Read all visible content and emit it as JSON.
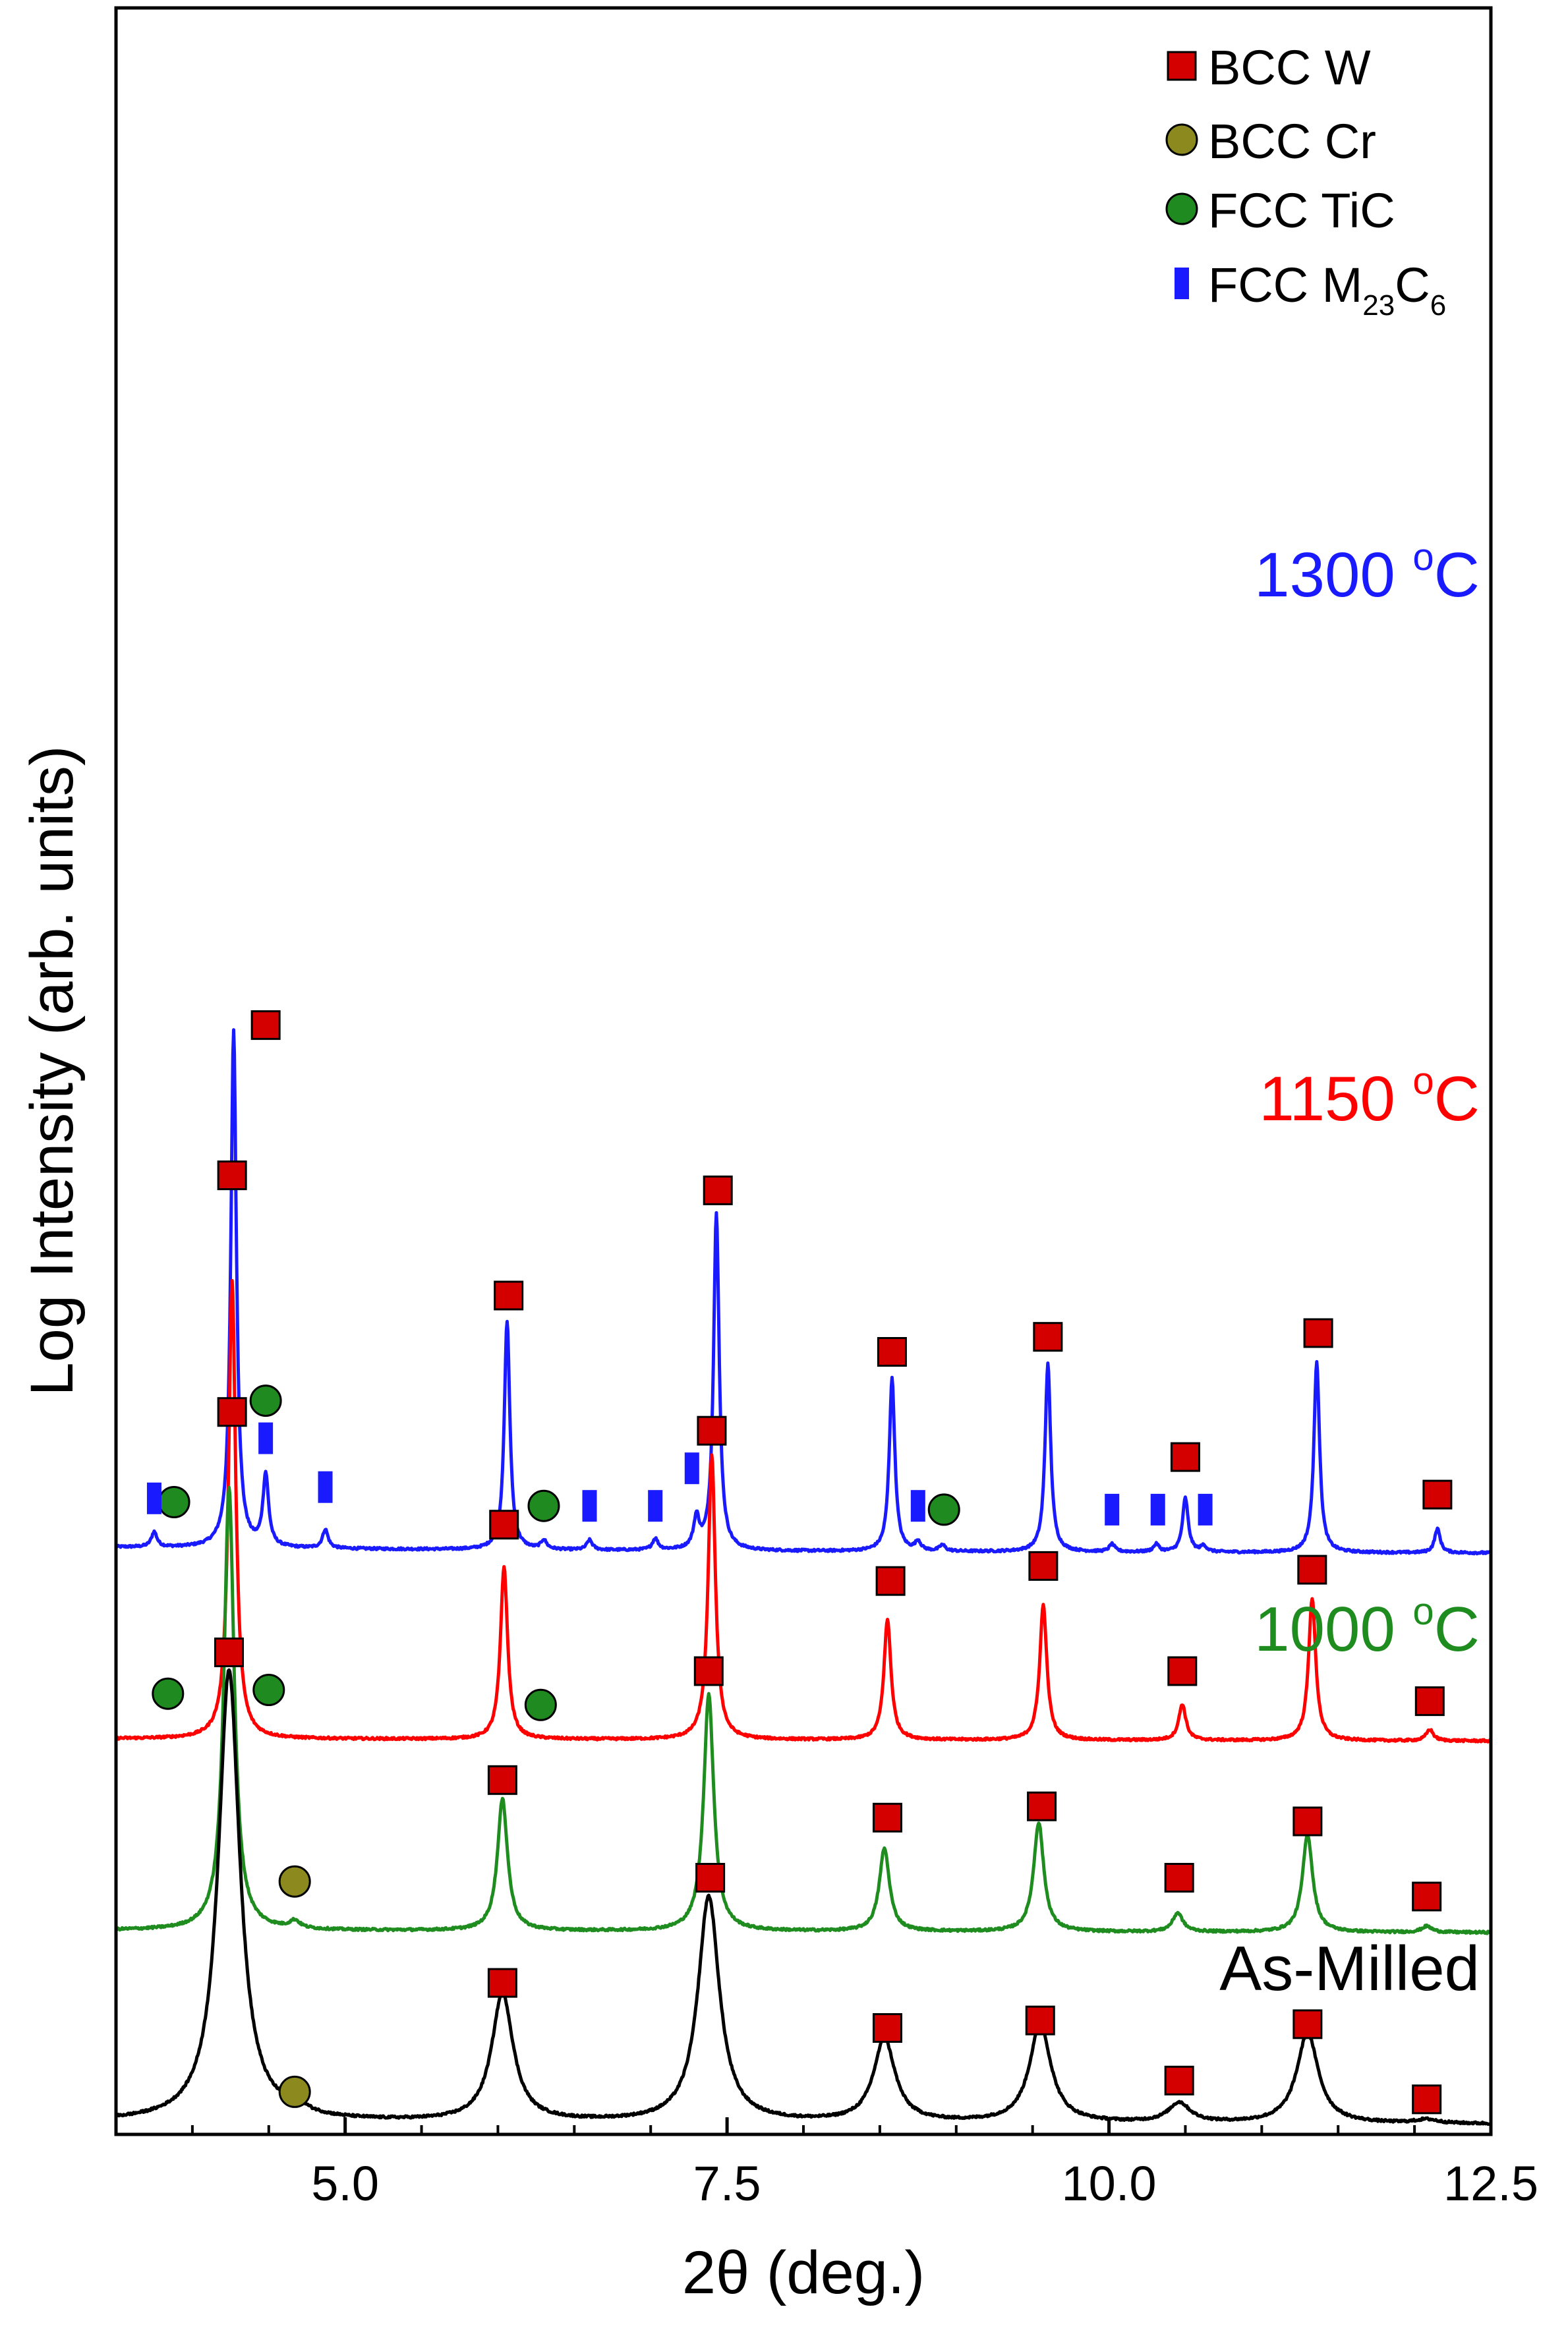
{
  "chart_data": {
    "type": "line",
    "xlabel": "2θ (deg.)",
    "ylabel": "Log Intensity (arb. units)",
    "xlim": [
      3.5,
      12.5
    ],
    "x_ticks": [
      5.0,
      7.5,
      10.0,
      12.5
    ],
    "x_tick_labels": [
      "5.0",
      "7.5",
      "10.0",
      "12.5"
    ],
    "y_ticks_shown": false,
    "grid": false,
    "legend_position": "top-right",
    "legend": [
      {
        "label": "BCC W",
        "marker": "square",
        "color": "#d40000"
      },
      {
        "label": "BCC Cr",
        "marker": "circle",
        "color": "#8c8a1e"
      },
      {
        "label": "FCC TiC",
        "marker": "circle",
        "color": "#1f8a1f"
      },
      {
        "label": "FCC M23C6",
        "label_base": "FCC M",
        "label_sub1": "23",
        "label_mid": "C",
        "label_sub2": "6",
        "marker": "bar",
        "color": "#1a1aff"
      }
    ],
    "series": [
      {
        "name": "1300 °C",
        "label_value": "1300",
        "label_unit": "C",
        "label_degree": "o",
        "color": "#1a1aff",
        "offset": 7.6,
        "width_deg": 0.022,
        "background": 0.05,
        "peaks": [
          {
            "x": 4.27,
            "h": 6.9
          },
          {
            "x": 4.48,
            "h": 0.95
          },
          {
            "x": 3.75,
            "h": 0.2
          },
          {
            "x": 4.87,
            "h": 0.25
          },
          {
            "x": 6.06,
            "h": 3.05
          },
          {
            "x": 6.3,
            "h": 0.12
          },
          {
            "x": 6.6,
            "h": 0.13
          },
          {
            "x": 7.03,
            "h": 0.15
          },
          {
            "x": 7.3,
            "h": 0.4
          },
          {
            "x": 7.43,
            "h": 4.5
          },
          {
            "x": 8.58,
            "h": 2.3
          },
          {
            "x": 8.75,
            "h": 0.12
          },
          {
            "x": 8.91,
            "h": 0.08
          },
          {
            "x": 9.6,
            "h": 2.5
          },
          {
            "x": 10.02,
            "h": 0.1
          },
          {
            "x": 10.31,
            "h": 0.1
          },
          {
            "x": 10.5,
            "h": 0.72
          },
          {
            "x": 10.62,
            "h": 0.08
          },
          {
            "x": 11.36,
            "h": 2.55
          },
          {
            "x": 12.15,
            "h": 0.32
          }
        ],
        "markers": [
          {
            "x": 4.48,
            "type": "W",
            "y": 7.0
          },
          {
            "x": 6.07,
            "type": "W",
            "y": 3.4
          },
          {
            "x": 7.44,
            "type": "W",
            "y": 4.8
          },
          {
            "x": 8.58,
            "type": "W",
            "y": 2.65
          },
          {
            "x": 9.6,
            "type": "W",
            "y": 2.85
          },
          {
            "x": 10.5,
            "type": "W",
            "y": 1.25
          },
          {
            "x": 11.37,
            "type": "W",
            "y": 2.9
          },
          {
            "x": 12.15,
            "type": "W",
            "y": 0.75
          },
          {
            "x": 3.88,
            "type": "TiC",
            "y": 0.65
          },
          {
            "x": 4.48,
            "type": "TiC",
            "y": 2.0
          },
          {
            "x": 6.3,
            "type": "TiC",
            "y": 0.6
          },
          {
            "x": 8.92,
            "type": "TiC",
            "y": 0.55
          },
          {
            "x": 3.75,
            "type": "M",
            "y": 0.7
          },
          {
            "x": 4.48,
            "type": "M",
            "y": 1.5
          },
          {
            "x": 4.87,
            "type": "M",
            "y": 0.85
          },
          {
            "x": 6.6,
            "type": "M",
            "y": 0.6
          },
          {
            "x": 7.03,
            "type": "M",
            "y": 0.6
          },
          {
            "x": 7.27,
            "type": "M",
            "y": 1.1
          },
          {
            "x": 8.75,
            "type": "M",
            "y": 0.6
          },
          {
            "x": 10.02,
            "type": "M",
            "y": 0.55
          },
          {
            "x": 10.32,
            "type": "M",
            "y": 0.55
          },
          {
            "x": 10.63,
            "type": "M",
            "y": 0.55
          }
        ]
      },
      {
        "name": "1150 °C",
        "label_value": "1150",
        "label_unit": "C",
        "label_degree": "o",
        "color": "#ff0000",
        "offset": 5.1,
        "width_deg": 0.028,
        "background": 0.0,
        "peaks": [
          {
            "x": 4.26,
            "h": 6.1
          },
          {
            "x": 6.04,
            "h": 2.3
          },
          {
            "x": 7.4,
            "h": 3.8
          },
          {
            "x": 8.55,
            "h": 1.6
          },
          {
            "x": 9.57,
            "h": 1.8
          },
          {
            "x": 10.48,
            "h": 0.48
          },
          {
            "x": 11.33,
            "h": 1.9
          },
          {
            "x": 12.1,
            "h": 0.15
          }
        ],
        "markers": [
          {
            "x": 4.26,
            "type": "W",
            "y": 7.5
          },
          {
            "x": 6.04,
            "type": "W",
            "y": 2.85
          },
          {
            "x": 7.4,
            "type": "W",
            "y": 4.1
          },
          {
            "x": 8.57,
            "type": "W",
            "y": 2.1
          },
          {
            "x": 9.57,
            "type": "W",
            "y": 2.3
          },
          {
            "x": 10.48,
            "type": "W",
            "y": 0.9
          },
          {
            "x": 11.33,
            "type": "W",
            "y": 2.25
          },
          {
            "x": 12.1,
            "type": "W",
            "y": 0.5
          },
          {
            "x": 3.84,
            "type": "TiC",
            "y": 0.6
          },
          {
            "x": 4.5,
            "type": "TiC",
            "y": 0.65
          },
          {
            "x": 6.28,
            "type": "TiC",
            "y": 0.45
          }
        ]
      },
      {
        "name": "1000 °C",
        "label_value": "1000",
        "label_unit": "C",
        "label_degree": "o",
        "color": "#1e8c1e",
        "offset": 2.55,
        "width_deg": 0.04,
        "background": 0.0,
        "peaks": [
          {
            "x": 4.24,
            "h": 5.9
          },
          {
            "x": 4.67,
            "h": 0.1
          },
          {
            "x": 6.03,
            "h": 1.75
          },
          {
            "x": 7.38,
            "h": 3.15
          },
          {
            "x": 8.53,
            "h": 1.1
          },
          {
            "x": 9.54,
            "h": 1.45
          },
          {
            "x": 10.45,
            "h": 0.25
          },
          {
            "x": 11.3,
            "h": 1.3
          },
          {
            "x": 12.08,
            "h": 0.08
          }
        ],
        "markers": [
          {
            "x": 4.26,
            "type": "W",
            "y": 6.9
          },
          {
            "x": 6.03,
            "type": "W",
            "y": 2.0
          },
          {
            "x": 7.38,
            "type": "W",
            "y": 3.45
          },
          {
            "x": 8.55,
            "type": "W",
            "y": 1.5
          },
          {
            "x": 9.56,
            "type": "W",
            "y": 1.65
          },
          {
            "x": 10.46,
            "type": "W",
            "y": 0.7
          },
          {
            "x": 11.3,
            "type": "W",
            "y": 1.45
          },
          {
            "x": 12.08,
            "type": "W",
            "y": 0.45
          },
          {
            "x": 4.67,
            "type": "Cr",
            "y": 0.65
          }
        ]
      },
      {
        "name": "As-Milled",
        "label_value": "As-Milled",
        "label_unit": "",
        "label_degree": "",
        "color": "#000000",
        "offset": 0.0,
        "width_deg": 0.085,
        "background": 0.0,
        "peaks": [
          {
            "x": 4.24,
            "h": 6.0
          },
          {
            "x": 4.67,
            "h": 0.12
          },
          {
            "x": 6.03,
            "h": 1.7
          },
          {
            "x": 7.38,
            "h": 3.0
          },
          {
            "x": 8.53,
            "h": 1.1
          },
          {
            "x": 9.55,
            "h": 1.3
          },
          {
            "x": 10.46,
            "h": 0.26
          },
          {
            "x": 11.3,
            "h": 1.2
          },
          {
            "x": 12.08,
            "h": 0.05
          }
        ],
        "markers": [
          {
            "x": 4.24,
            "type": "W",
            "y": 6.25
          },
          {
            "x": 6.03,
            "type": "W",
            "y": 1.85
          },
          {
            "x": 7.39,
            "type": "W",
            "y": 3.25
          },
          {
            "x": 8.55,
            "type": "W",
            "y": 1.25
          },
          {
            "x": 9.55,
            "type": "W",
            "y": 1.35
          },
          {
            "x": 10.46,
            "type": "W",
            "y": 0.55
          },
          {
            "x": 11.3,
            "type": "W",
            "y": 1.3
          },
          {
            "x": 12.08,
            "type": "W",
            "y": 0.3
          },
          {
            "x": 4.67,
            "type": "Cr",
            "y": 0.4
          }
        ]
      }
    ]
  }
}
